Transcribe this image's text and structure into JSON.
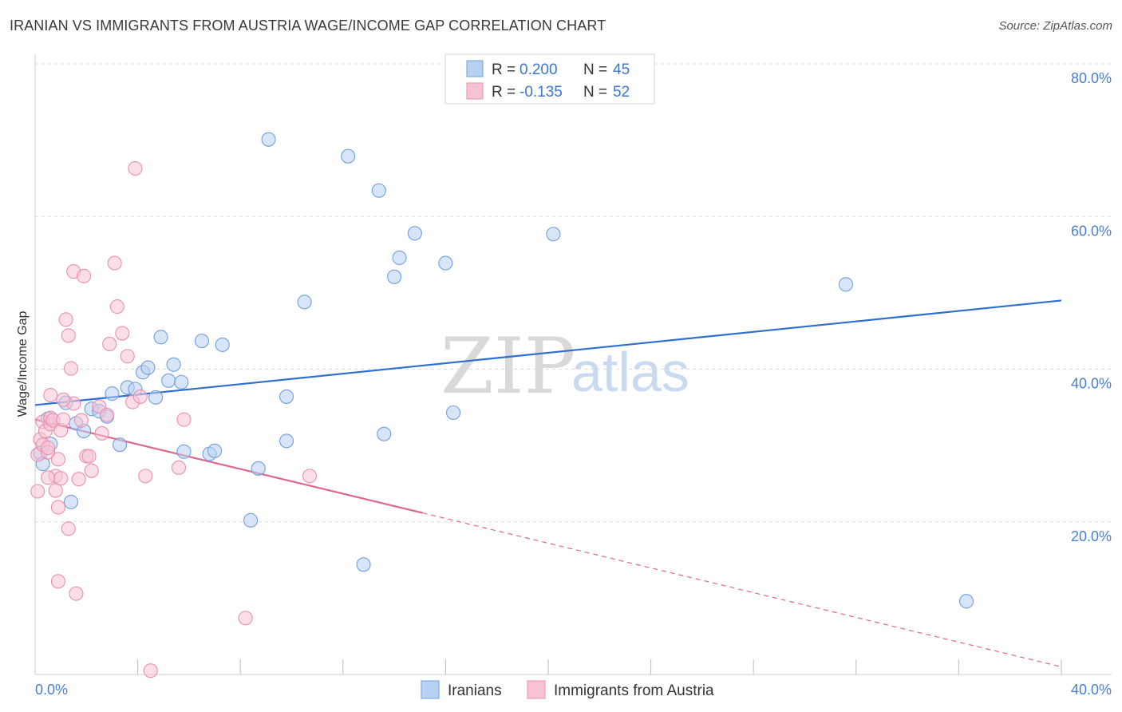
{
  "title": "IRANIAN VS IMMIGRANTS FROM AUSTRIA WAGE/INCOME GAP CORRELATION CHART",
  "source": "Source: ZipAtlas.com",
  "watermark": {
    "zip": "ZIP",
    "atlas": "atlas"
  },
  "colors": {
    "blue_fill": "#b8d0f2",
    "blue_stroke": "#6f9fdc",
    "blue_line": "#2e6fd0",
    "pink_fill": "#f7c3d4",
    "pink_stroke": "#ea8fae",
    "pink_line": "#e0668f",
    "grid": "#dcdcdc",
    "tick_text": "#4a7fcc"
  },
  "legend": {
    "rows": [
      {
        "series": "Iranians",
        "r_label": "R = ",
        "r_value": "0.200",
        "n_label": "N = ",
        "n_value": "45"
      },
      {
        "series": "Immigrants from Austria",
        "r_label": "R = ",
        "r_value": "-0.135",
        "n_label": "N = ",
        "n_value": "52"
      }
    ]
  },
  "chart_data": {
    "type": "scatter",
    "title": "IRANIAN VS IMMIGRANTS FROM AUSTRIA WAGE/INCOME GAP CORRELATION CHART",
    "xlabel": "",
    "ylabel": "Wage/Income Gap",
    "xlim": [
      0,
      40
    ],
    "ylim": [
      0,
      80
    ],
    "x_tick_labels": [
      "0.0%",
      "40.0%"
    ],
    "y_ticks": [
      20,
      40,
      60,
      80
    ],
    "y_tick_labels": [
      "20.0%",
      "40.0%",
      "60.0%",
      "80.0%"
    ],
    "grid": true,
    "legend_position": "top-center",
    "series": [
      {
        "name": "Iranians",
        "color": "#6f9fdc",
        "regression": {
          "x_start": 0,
          "y_start": 35.3,
          "x_end": 40,
          "y_end": 49.0,
          "dashed_from": null
        },
        "points": [
          [
            0.2,
            29.0
          ],
          [
            0.3,
            27.6
          ],
          [
            0.5,
            33.5
          ],
          [
            0.6,
            30.2
          ],
          [
            1.2,
            35.6
          ],
          [
            1.4,
            22.6
          ],
          [
            1.6,
            32.9
          ],
          [
            1.9,
            31.9
          ],
          [
            2.2,
            34.8
          ],
          [
            2.5,
            34.5
          ],
          [
            2.8,
            33.8
          ],
          [
            3.0,
            36.8
          ],
          [
            3.3,
            30.1
          ],
          [
            3.6,
            37.6
          ],
          [
            3.9,
            37.4
          ],
          [
            4.2,
            39.6
          ],
          [
            4.4,
            40.2
          ],
          [
            4.7,
            36.3
          ],
          [
            4.9,
            44.2
          ],
          [
            5.2,
            38.5
          ],
          [
            5.4,
            40.6
          ],
          [
            5.7,
            38.3
          ],
          [
            5.8,
            29.2
          ],
          [
            6.5,
            43.7
          ],
          [
            6.8,
            28.9
          ],
          [
            7.0,
            29.3
          ],
          [
            7.3,
            43.2
          ],
          [
            8.4,
            20.2
          ],
          [
            8.7,
            27.0
          ],
          [
            9.1,
            70.1
          ],
          [
            9.8,
            36.4
          ],
          [
            9.8,
            30.6
          ],
          [
            10.5,
            48.8
          ],
          [
            12.2,
            67.9
          ],
          [
            12.8,
            14.4
          ],
          [
            13.4,
            63.4
          ],
          [
            13.6,
            31.5
          ],
          [
            14.0,
            52.1
          ],
          [
            14.2,
            54.6
          ],
          [
            14.8,
            57.8
          ],
          [
            16.0,
            53.9
          ],
          [
            16.3,
            34.3
          ],
          [
            20.2,
            57.7
          ],
          [
            31.6,
            51.1
          ],
          [
            36.3,
            9.6
          ]
        ]
      },
      {
        "name": "Immigrants from Austria",
        "color": "#ea8fae",
        "regression": {
          "x_start": 0,
          "y_start": 33.4,
          "x_end": 40,
          "y_end": 1.0,
          "solid_until_x": 15.1
        },
        "points": [
          [
            0.1,
            24.0
          ],
          [
            0.1,
            28.8
          ],
          [
            0.2,
            30.8
          ],
          [
            0.3,
            33.1
          ],
          [
            0.3,
            30.1
          ],
          [
            0.4,
            31.9
          ],
          [
            0.5,
            29.1
          ],
          [
            0.5,
            29.7
          ],
          [
            0.6,
            32.8
          ],
          [
            0.6,
            33.6
          ],
          [
            0.6,
            36.6
          ],
          [
            0.7,
            33.3
          ],
          [
            0.8,
            26.0
          ],
          [
            0.8,
            24.1
          ],
          [
            0.9,
            28.2
          ],
          [
            0.9,
            21.9
          ],
          [
            0.9,
            12.2
          ],
          [
            1.0,
            32.0
          ],
          [
            1.0,
            25.7
          ],
          [
            1.1,
            33.4
          ],
          [
            1.2,
            46.5
          ],
          [
            1.3,
            19.1
          ],
          [
            1.3,
            44.4
          ],
          [
            1.4,
            40.1
          ],
          [
            1.5,
            35.5
          ],
          [
            1.5,
            52.8
          ],
          [
            1.6,
            10.6
          ],
          [
            1.7,
            25.6
          ],
          [
            1.8,
            33.3
          ],
          [
            1.9,
            52.2
          ],
          [
            2.0,
            28.6
          ],
          [
            2.1,
            28.6
          ],
          [
            2.2,
            26.7
          ],
          [
            2.5,
            35.1
          ],
          [
            2.6,
            31.6
          ],
          [
            2.8,
            34.0
          ],
          [
            2.9,
            43.3
          ],
          [
            3.1,
            53.9
          ],
          [
            3.2,
            48.2
          ],
          [
            3.4,
            44.7
          ],
          [
            3.6,
            41.7
          ],
          [
            3.8,
            35.7
          ],
          [
            3.9,
            66.3
          ],
          [
            4.1,
            36.4
          ],
          [
            4.3,
            26.0
          ],
          [
            4.5,
            0.5
          ],
          [
            5.6,
            27.1
          ],
          [
            5.8,
            33.4
          ],
          [
            8.2,
            7.4
          ],
          [
            10.7,
            26.0
          ],
          [
            0.5,
            25.8
          ],
          [
            1.1,
            36.0
          ]
        ]
      }
    ]
  },
  "bottom_legend": {
    "items": [
      {
        "label": "Iranians"
      },
      {
        "label": "Immigrants from Austria"
      }
    ]
  }
}
